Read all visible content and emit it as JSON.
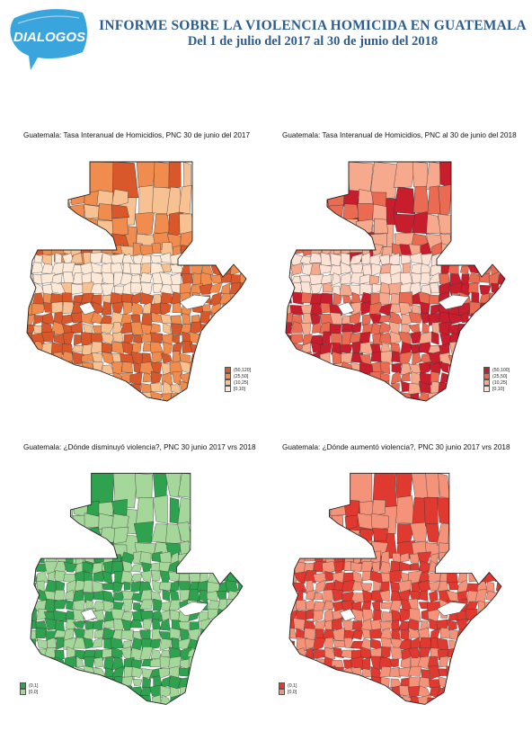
{
  "header": {
    "logo_text": "DIALOGOS",
    "title_line1": "INFORME SOBRE LA VIOLENCIA HOMICIDA EN GUATEMALA",
    "title_line2": "Del 1 de julio del 2017 al 30 de junio del 2018"
  },
  "colors": {
    "title_blue": "#2c5d8f",
    "logo_blue": "#3aa5dc"
  },
  "panels": [
    {
      "title": "Guatemala: Tasa Interanual de Homicidios, PNC 30 de junio del 2017",
      "legend": [
        {
          "label": "(50,120]",
          "color": "#d8582b"
        },
        {
          "label": "(25,50]",
          "color": "#f08c4e"
        },
        {
          "label": "(10,25]",
          "color": "#f8c192"
        },
        {
          "label": "[0,10]",
          "color": "#fce9d8"
        }
      ]
    },
    {
      "title": "Guatemala: Tasa Interanual de Homicidios, PNC al 30 de junio del 2018",
      "legend": [
        {
          "label": "(50,100]",
          "color": "#c81d2c"
        },
        {
          "label": "(25,50]",
          "color": "#eb6a52"
        },
        {
          "label": "(10,25]",
          "color": "#f6a98c"
        },
        {
          "label": "[0,10]",
          "color": "#fde3d6"
        }
      ]
    },
    {
      "title": "Guatemala: ¿Dónde disminuyó violencia?, PNC 30 junio 2017 vrs 2018",
      "legend": [
        {
          "label": "(0,1]",
          "color": "#2ea24f"
        },
        {
          "label": "[0,0]",
          "color": "#a5d79b"
        }
      ]
    },
    {
      "title": "Guatemala: ¿Dónde aumentó violencia?, PNC 30 junio 2017 vrs 2018",
      "legend": [
        {
          "label": "(0,1]",
          "color": "#e03a30"
        },
        {
          "label": "[0,0]",
          "color": "#f5937a"
        }
      ]
    }
  ]
}
